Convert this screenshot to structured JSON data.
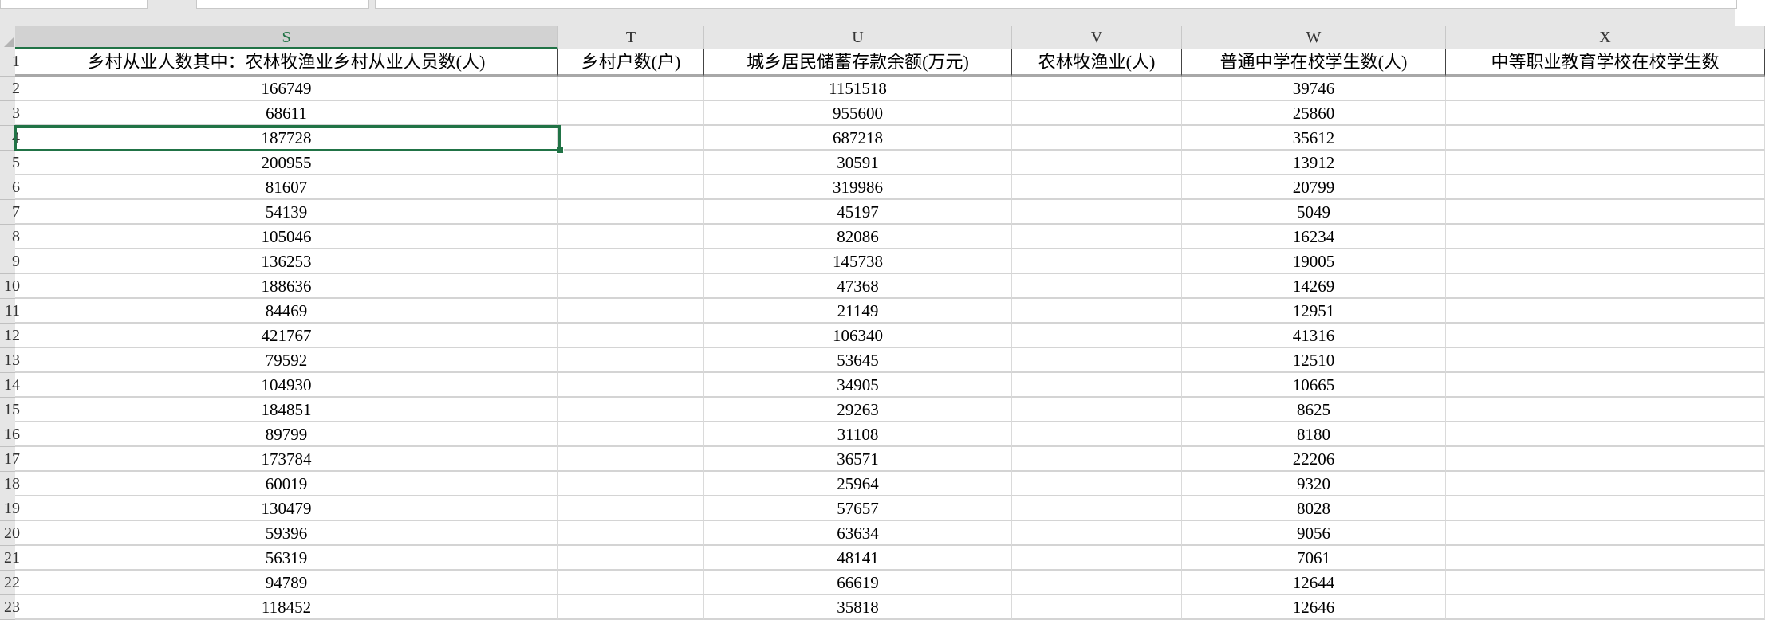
{
  "columns": [
    {
      "letter": "S",
      "header": "乡村从业人数其中：农林牧渔业乡村从业人员数(人)",
      "selected": true
    },
    {
      "letter": "T",
      "header": "乡村户数(户)"
    },
    {
      "letter": "U",
      "header": "城乡居民储蓄存款余额(万元)"
    },
    {
      "letter": "V",
      "header": "农林牧渔业(人)"
    },
    {
      "letter": "W",
      "header": "普通中学在校学生数(人)"
    },
    {
      "letter": "X",
      "header": "中等职业教育学校在校学生数"
    }
  ],
  "header_row_number": "1",
  "rows": [
    {
      "n": "2",
      "S": "166749",
      "T": "",
      "U": "1151518",
      "V": "",
      "W": "39746",
      "X": ""
    },
    {
      "n": "3",
      "S": "68611",
      "T": "",
      "U": "955600",
      "V": "",
      "W": "25860",
      "X": ""
    },
    {
      "n": "4",
      "S": "187728",
      "T": "",
      "U": "687218",
      "V": "",
      "W": "35612",
      "X": ""
    },
    {
      "n": "5",
      "S": "200955",
      "T": "",
      "U": "30591",
      "V": "",
      "W": "13912",
      "X": ""
    },
    {
      "n": "6",
      "S": "81607",
      "T": "",
      "U": "319986",
      "V": "",
      "W": "20799",
      "X": ""
    },
    {
      "n": "7",
      "S": "54139",
      "T": "",
      "U": "45197",
      "V": "",
      "W": "5049",
      "X": ""
    },
    {
      "n": "8",
      "S": "105046",
      "T": "",
      "U": "82086",
      "V": "",
      "W": "16234",
      "X": ""
    },
    {
      "n": "9",
      "S": "136253",
      "T": "",
      "U": "145738",
      "V": "",
      "W": "19005",
      "X": ""
    },
    {
      "n": "10",
      "S": "188636",
      "T": "",
      "U": "47368",
      "V": "",
      "W": "14269",
      "X": ""
    },
    {
      "n": "11",
      "S": "84469",
      "T": "",
      "U": "21149",
      "V": "",
      "W": "12951",
      "X": ""
    },
    {
      "n": "12",
      "S": "421767",
      "T": "",
      "U": "106340",
      "V": "",
      "W": "41316",
      "X": ""
    },
    {
      "n": "13",
      "S": "79592",
      "T": "",
      "U": "53645",
      "V": "",
      "W": "12510",
      "X": ""
    },
    {
      "n": "14",
      "S": "104930",
      "T": "",
      "U": "34905",
      "V": "",
      "W": "10665",
      "X": ""
    },
    {
      "n": "15",
      "S": "184851",
      "T": "",
      "U": "29263",
      "V": "",
      "W": "8625",
      "X": ""
    },
    {
      "n": "16",
      "S": "89799",
      "T": "",
      "U": "31108",
      "V": "",
      "W": "8180",
      "X": ""
    },
    {
      "n": "17",
      "S": "173784",
      "T": "",
      "U": "36571",
      "V": "",
      "W": "22206",
      "X": ""
    },
    {
      "n": "18",
      "S": "60019",
      "T": "",
      "U": "25964",
      "V": "",
      "W": "9320",
      "X": ""
    },
    {
      "n": "19",
      "S": "130479",
      "T": "",
      "U": "57657",
      "V": "",
      "W": "8028",
      "X": ""
    },
    {
      "n": "20",
      "S": "59396",
      "T": "",
      "U": "63634",
      "V": "",
      "W": "9056",
      "X": ""
    },
    {
      "n": "21",
      "S": "56319",
      "T": "",
      "U": "48141",
      "V": "",
      "W": "7061",
      "X": ""
    },
    {
      "n": "22",
      "S": "94789",
      "T": "",
      "U": "66619",
      "V": "",
      "W": "12644",
      "X": ""
    },
    {
      "n": "23",
      "S": "118452",
      "T": "",
      "U": "35818",
      "V": "",
      "W": "12646",
      "X": ""
    }
  ],
  "selected_cell": "S4",
  "colors": {
    "accent": "#217346",
    "header_bg": "#e6e6e6",
    "selected_header_bg": "#d2d2d2"
  }
}
